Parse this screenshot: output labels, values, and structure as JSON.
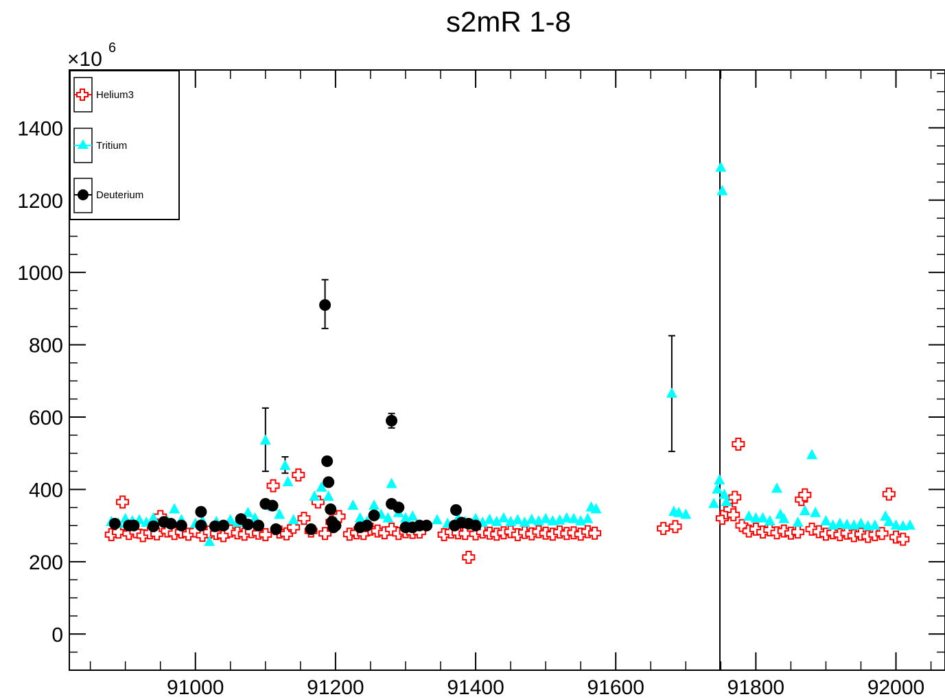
{
  "chart_data": {
    "type": "scatter",
    "title": "s2mR 1-8",
    "xlabel": "",
    "ylabel": "",
    "y_multiplier_label": "×10",
    "y_multiplier_exponent": "6",
    "xlim": [
      90820,
      92070
    ],
    "ylim": [
      -100,
      1560
    ],
    "x_ticks": [
      91000,
      91200,
      91400,
      91600,
      91800,
      92000
    ],
    "x_tick_labels": [
      "91000",
      "91200",
      "91400",
      "91600",
      "91800",
      "92000"
    ],
    "y_ticks": [
      0,
      200,
      400,
      600,
      800,
      1000,
      1200,
      1400
    ],
    "y_tick_labels": [
      "0",
      "200",
      "400",
      "600",
      "800",
      "1000",
      "1200",
      "1400"
    ],
    "legend_position": "top-left",
    "grid": false,
    "vertical_line_x": 91750,
    "colors": {
      "helium3": "#ff0000",
      "tritium": "#00ffff",
      "deuterium": "#000000"
    },
    "series": [
      {
        "name": "Helium3",
        "marker": "open-cross",
        "points": [
          [
            90880,
            275
          ],
          [
            90890,
            282
          ],
          [
            90896,
            365
          ],
          [
            90905,
            278
          ],
          [
            90915,
            283
          ],
          [
            90925,
            272
          ],
          [
            90935,
            280
          ],
          [
            90945,
            277
          ],
          [
            90950,
            325
          ],
          [
            90960,
            285
          ],
          [
            90970,
            278
          ],
          [
            90980,
            282
          ],
          [
            90990,
            276
          ],
          [
            91000,
            285
          ],
          [
            91010,
            273
          ],
          [
            91020,
            282
          ],
          [
            91030,
            278
          ],
          [
            91040,
            272
          ],
          [
            91050,
            285
          ],
          [
            91060,
            280
          ],
          [
            91070,
            276
          ],
          [
            91080,
            283
          ],
          [
            91090,
            279
          ],
          [
            91100,
            275
          ],
          [
            91111,
            410
          ],
          [
            91120,
            282
          ],
          [
            91130,
            277
          ],
          [
            91140,
            295
          ],
          [
            91147,
            440
          ],
          [
            91155,
            320
          ],
          [
            91165,
            285
          ],
          [
            91175,
            365
          ],
          [
            91185,
            278
          ],
          [
            91195,
            310
          ],
          [
            91205,
            325
          ],
          [
            91220,
            276
          ],
          [
            91230,
            280
          ],
          [
            91240,
            278
          ],
          [
            91250,
            290
          ],
          [
            91260,
            285
          ],
          [
            91270,
            280
          ],
          [
            91280,
            290
          ],
          [
            91290,
            278
          ],
          [
            91300,
            283
          ],
          [
            91310,
            281
          ],
          [
            91320,
            282
          ],
          [
            91355,
            275
          ],
          [
            91365,
            282
          ],
          [
            91375,
            280
          ],
          [
            91385,
            278
          ],
          [
            91390,
            212
          ],
          [
            91400,
            277
          ],
          [
            91410,
            282
          ],
          [
            91420,
            279
          ],
          [
            91430,
            276
          ],
          [
            91440,
            280
          ],
          [
            91450,
            283
          ],
          [
            91460,
            275
          ],
          [
            91470,
            281
          ],
          [
            91480,
            277
          ],
          [
            91490,
            283
          ],
          [
            91500,
            279
          ],
          [
            91510,
            276
          ],
          [
            91520,
            282
          ],
          [
            91530,
            278
          ],
          [
            91540,
            280
          ],
          [
            91550,
            276
          ],
          [
            91560,
            283
          ],
          [
            91570,
            279
          ],
          [
            91668,
            292
          ],
          [
            91685,
            297
          ],
          [
            91752,
            320
          ],
          [
            91758,
            335
          ],
          [
            91763,
            345
          ],
          [
            91768,
            330
          ],
          [
            91770,
            378
          ],
          [
            91775,
            525
          ],
          [
            91780,
            300
          ],
          [
            91790,
            285
          ],
          [
            91800,
            290
          ],
          [
            91810,
            282
          ],
          [
            91820,
            288
          ],
          [
            91830,
            280
          ],
          [
            91840,
            285
          ],
          [
            91850,
            279
          ],
          [
            91860,
            282
          ],
          [
            91865,
            372
          ],
          [
            91870,
            385
          ],
          [
            91880,
            290
          ],
          [
            91890,
            283
          ],
          [
            91900,
            276
          ],
          [
            91910,
            280
          ],
          [
            91920,
            275
          ],
          [
            91930,
            279
          ],
          [
            91940,
            272
          ],
          [
            91950,
            276
          ],
          [
            91960,
            270
          ],
          [
            91970,
            275
          ],
          [
            91980,
            278
          ],
          [
            91990,
            387
          ],
          [
            92000,
            268
          ],
          [
            92010,
            262
          ]
        ],
        "errors": []
      },
      {
        "name": "Tritium",
        "marker": "filled-triangle",
        "points": [
          [
            90880,
            310
          ],
          [
            90890,
            305
          ],
          [
            90900,
            318
          ],
          [
            90910,
            312
          ],
          [
            90920,
            315
          ],
          [
            90930,
            308
          ],
          [
            90940,
            320
          ],
          [
            90960,
            312
          ],
          [
            90970,
            345
          ],
          [
            90980,
            315
          ],
          [
            91000,
            305
          ],
          [
            91010,
            312
          ],
          [
            91020,
            255
          ],
          [
            91030,
            310
          ],
          [
            91050,
            315
          ],
          [
            91060,
            308
          ],
          [
            91075,
            335
          ],
          [
            91085,
            320
          ],
          [
            91100,
            535
          ],
          [
            91110,
            352
          ],
          [
            91120,
            330
          ],
          [
            91128,
            465
          ],
          [
            91132,
            420
          ],
          [
            91140,
            315
          ],
          [
            91170,
            380
          ],
          [
            91180,
            405
          ],
          [
            91190,
            380
          ],
          [
            91200,
            310
          ],
          [
            91225,
            355
          ],
          [
            91235,
            320
          ],
          [
            91245,
            310
          ],
          [
            91255,
            355
          ],
          [
            91265,
            330
          ],
          [
            91275,
            320
          ],
          [
            91280,
            415
          ],
          [
            91290,
            335
          ],
          [
            91300,
            320
          ],
          [
            91310,
            325
          ],
          [
            91345,
            315
          ],
          [
            91360,
            305
          ],
          [
            91375,
            320
          ],
          [
            91385,
            310
          ],
          [
            91400,
            318
          ],
          [
            91410,
            308
          ],
          [
            91420,
            316
          ],
          [
            91430,
            310
          ],
          [
            91440,
            320
          ],
          [
            91450,
            310
          ],
          [
            91460,
            315
          ],
          [
            91470,
            308
          ],
          [
            91480,
            316
          ],
          [
            91490,
            312
          ],
          [
            91500,
            318
          ],
          [
            91510,
            312
          ],
          [
            91520,
            314
          ],
          [
            91530,
            320
          ],
          [
            91540,
            318
          ],
          [
            91550,
            312
          ],
          [
            91560,
            318
          ],
          [
            91565,
            350
          ],
          [
            91572,
            345
          ],
          [
            91680,
            665
          ],
          [
            91683,
            338
          ],
          [
            91690,
            335
          ],
          [
            91700,
            330
          ],
          [
            91740,
            360
          ],
          [
            91745,
            400
          ],
          [
            91748,
            425
          ],
          [
            91750,
            1290
          ],
          [
            91752,
            1225
          ],
          [
            91755,
            385
          ],
          [
            91758,
            365
          ],
          [
            91790,
            325
          ],
          [
            91800,
            320
          ],
          [
            91810,
            320
          ],
          [
            91820,
            312
          ],
          [
            91830,
            402
          ],
          [
            91835,
            330
          ],
          [
            91840,
            318
          ],
          [
            91860,
            308
          ],
          [
            91870,
            340
          ],
          [
            91880,
            495
          ],
          [
            91885,
            335
          ],
          [
            91900,
            312
          ],
          [
            91910,
            300
          ],
          [
            91920,
            305
          ],
          [
            91930,
            302
          ],
          [
            91940,
            300
          ],
          [
            91950,
            305
          ],
          [
            91960,
            298
          ],
          [
            91970,
            300
          ],
          [
            91985,
            325
          ],
          [
            91990,
            310
          ],
          [
            92000,
            300
          ],
          [
            92010,
            298
          ],
          [
            92020,
            300
          ]
        ],
        "errors": [
          {
            "x": 91100,
            "y": 535,
            "low": 450,
            "high": 625
          },
          {
            "x": 91128,
            "y": 465,
            "low": 445,
            "high": 490
          },
          {
            "x": 91680,
            "y": 665,
            "low": 505,
            "high": 825
          }
        ]
      },
      {
        "name": "Deuterium",
        "marker": "filled-circle",
        "points": [
          [
            90885,
            305
          ],
          [
            90905,
            300
          ],
          [
            90912,
            300
          ],
          [
            90940,
            298
          ],
          [
            90955,
            310
          ],
          [
            90965,
            305
          ],
          [
            90980,
            300
          ],
          [
            91008,
            338
          ],
          [
            91008,
            300
          ],
          [
            91028,
            298
          ],
          [
            91040,
            300
          ],
          [
            91065,
            318
          ],
          [
            91075,
            303
          ],
          [
            91090,
            300
          ],
          [
            91100,
            360
          ],
          [
            91110,
            355
          ],
          [
            91115,
            290
          ],
          [
            91165,
            290
          ],
          [
            91185,
            910
          ],
          [
            91188,
            478
          ],
          [
            91190,
            420
          ],
          [
            91193,
            345
          ],
          [
            91195,
            310
          ],
          [
            91197,
            295
          ],
          [
            91200,
            300
          ],
          [
            91235,
            295
          ],
          [
            91245,
            300
          ],
          [
            91255,
            328
          ],
          [
            91280,
            590
          ],
          [
            91280,
            360
          ],
          [
            91290,
            350
          ],
          [
            91300,
            295
          ],
          [
            91310,
            295
          ],
          [
            91320,
            300
          ],
          [
            91330,
            300
          ],
          [
            91370,
            300
          ],
          [
            91372,
            343
          ],
          [
            91380,
            308
          ],
          [
            91390,
            305
          ],
          [
            91400,
            300
          ]
        ],
        "errors": [
          {
            "x": 91185,
            "y": 910,
            "low": 845,
            "high": 980
          },
          {
            "x": 91280,
            "y": 590,
            "low": 570,
            "high": 610
          }
        ]
      }
    ]
  }
}
